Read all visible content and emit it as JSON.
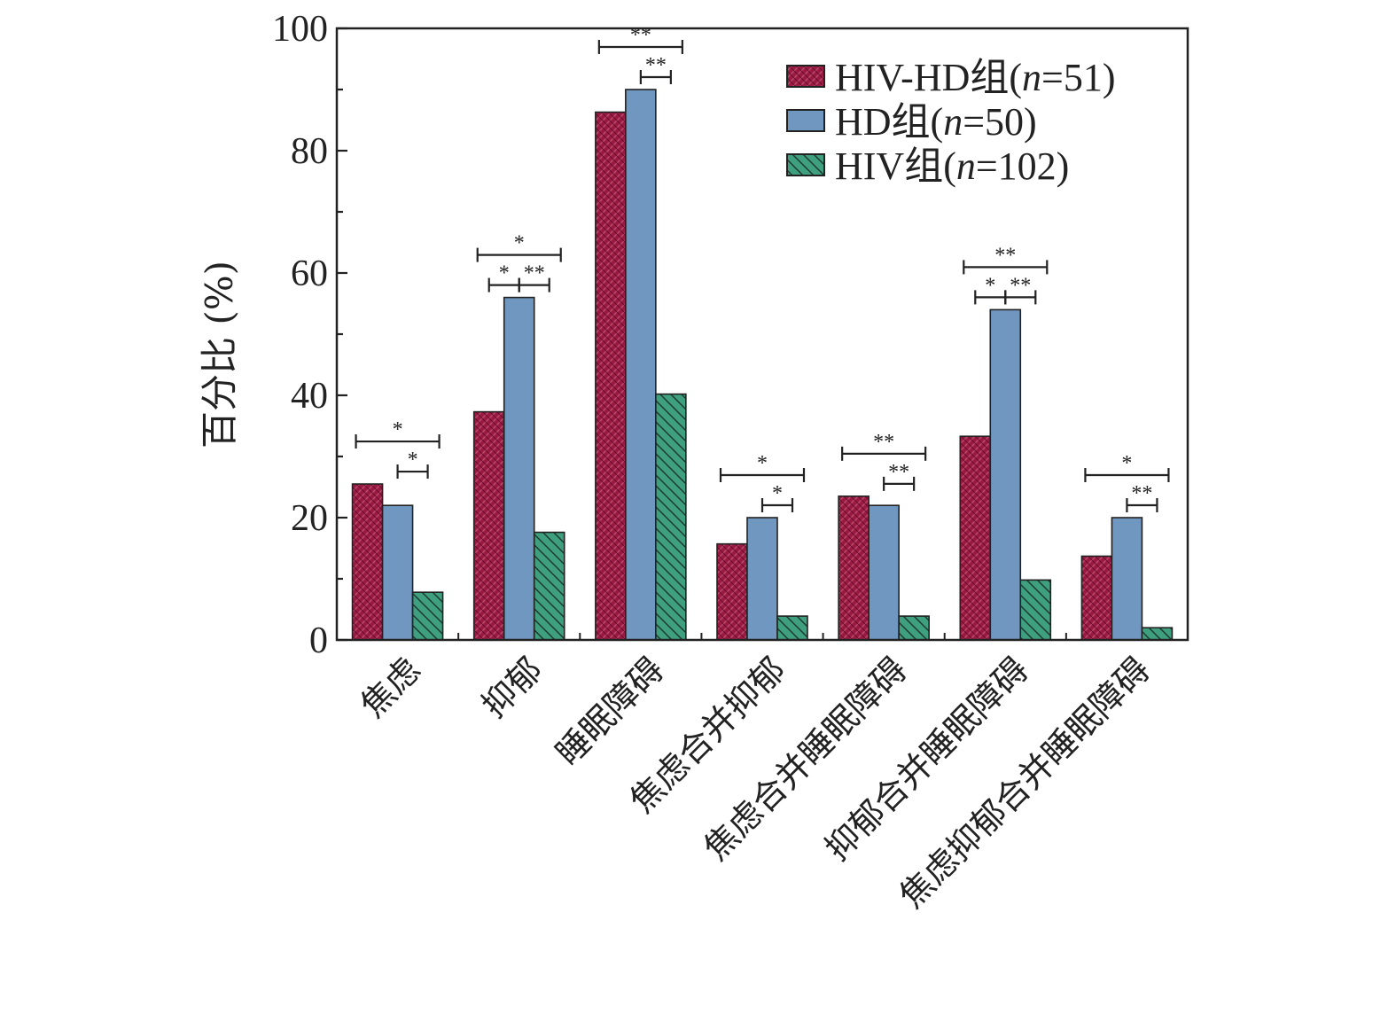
{
  "chart_data": {
    "type": "bar",
    "ylabel": "百分比 (%)",
    "ylim": [
      0,
      100
    ],
    "yticks": [
      "0",
      "20",
      "40",
      "60",
      "80",
      "100"
    ],
    "grid": false,
    "legend_position": "top-right",
    "categories": [
      "焦虑",
      "抑郁",
      "睡眠障碍",
      "焦虑合并抑郁",
      "焦虑合并睡眠障碍",
      "抑郁合并睡眠障碍",
      "焦虑抑郁合并睡眠障碍"
    ],
    "series": [
      {
        "name": "HIV-HD组(n=51)",
        "name_parts": [
          "HIV-HD组(",
          "n",
          "=51)"
        ],
        "color": "#9b1b45",
        "pattern": "crosshatch",
        "values": [
          25.5,
          37.3,
          86.3,
          15.7,
          23.5,
          33.3,
          13.7
        ]
      },
      {
        "name": "HD组(n=50)",
        "name_parts": [
          "HD组(",
          "n",
          "=50)"
        ],
        "color": "#7097bf",
        "pattern": "solid",
        "values": [
          22.0,
          56.0,
          90.0,
          20.0,
          22.0,
          54.0,
          20.0
        ]
      },
      {
        "name": "HIV组(n=102)",
        "name_parts": [
          "HIV组(",
          "n",
          "=102)"
        ],
        "color": "#3fa07f",
        "pattern": "diagonal",
        "values": [
          7.8,
          17.6,
          40.2,
          3.9,
          3.9,
          9.8,
          2.0
        ]
      }
    ],
    "significance": [
      {
        "category": 0,
        "from": 0,
        "to": 2,
        "label": "*"
      },
      {
        "category": 0,
        "from": 1,
        "to": 2,
        "label": "*"
      },
      {
        "category": 1,
        "from": 0,
        "to": 2,
        "label": "*"
      },
      {
        "category": 1,
        "from": 0,
        "to": 1,
        "label": "*"
      },
      {
        "category": 1,
        "from": 1,
        "to": 2,
        "label": "**"
      },
      {
        "category": 2,
        "from": 0,
        "to": 2,
        "label": "**"
      },
      {
        "category": 2,
        "from": 1,
        "to": 2,
        "label": "**"
      },
      {
        "category": 3,
        "from": 0,
        "to": 2,
        "label": "*"
      },
      {
        "category": 3,
        "from": 1,
        "to": 2,
        "label": "*"
      },
      {
        "category": 4,
        "from": 0,
        "to": 2,
        "label": "**"
      },
      {
        "category": 4,
        "from": 1,
        "to": 2,
        "label": "**"
      },
      {
        "category": 5,
        "from": 0,
        "to": 2,
        "label": "**"
      },
      {
        "category": 5,
        "from": 0,
        "to": 1,
        "label": "*"
      },
      {
        "category": 5,
        "from": 1,
        "to": 2,
        "label": "**"
      },
      {
        "category": 6,
        "from": 0,
        "to": 2,
        "label": "*"
      },
      {
        "category": 6,
        "from": 1,
        "to": 2,
        "label": "**"
      }
    ]
  }
}
